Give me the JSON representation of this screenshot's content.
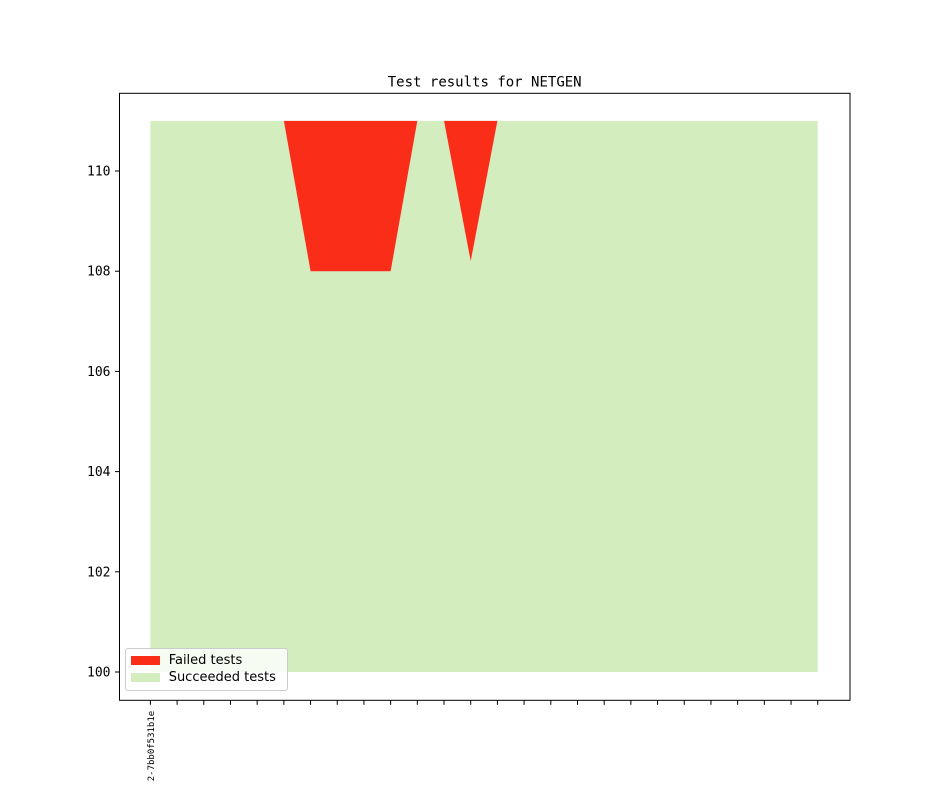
{
  "figure": {
    "title": "Test results for NETGEN",
    "background": "#ffffff"
  },
  "chart_data": {
    "type": "area",
    "stacked": true,
    "title": "Test results for NETGEN",
    "baseline": 100,
    "n_points": 26,
    "x": [
      0,
      1,
      2,
      3,
      4,
      5,
      6,
      7,
      8,
      9,
      10,
      11,
      12,
      13,
      14,
      15,
      16,
      17,
      18,
      19,
      20,
      21,
      22,
      23,
      24,
      25
    ],
    "series": [
      {
        "name": "Succeeded tests",
        "color": "#d4edbe",
        "values": [
          111,
          111,
          111,
          111,
          111,
          111,
          108,
          108,
          108,
          108,
          111,
          111,
          108.2,
          111,
          111,
          111,
          111,
          111,
          111,
          111,
          111,
          111,
          111,
          111,
          111,
          111
        ]
      },
      {
        "name": "Failed tests",
        "color": "#fa2d19",
        "values": [
          0,
          0,
          0,
          0,
          0,
          0,
          3,
          3,
          3,
          3,
          0,
          0,
          2.8,
          0,
          0,
          0,
          0,
          0,
          0,
          0,
          0,
          0,
          0,
          0,
          0,
          0
        ]
      }
    ],
    "first_xtick_label": "2-7bb0f531b1e",
    "yticks": [
      "100",
      "102",
      "104",
      "106",
      "108",
      "110"
    ],
    "ytick_values": [
      100,
      102,
      104,
      106,
      108,
      110
    ],
    "ylim": [
      99.45,
      111.55
    ],
    "xlim": [
      -1.25,
      26.25
    ],
    "grid": false,
    "legend_position": "lower left",
    "legend": {
      "entries": [
        {
          "label": "Failed tests",
          "color": "#fa2d19"
        },
        {
          "label": "Succeeded tests",
          "color": "#d4edbe"
        }
      ]
    }
  }
}
